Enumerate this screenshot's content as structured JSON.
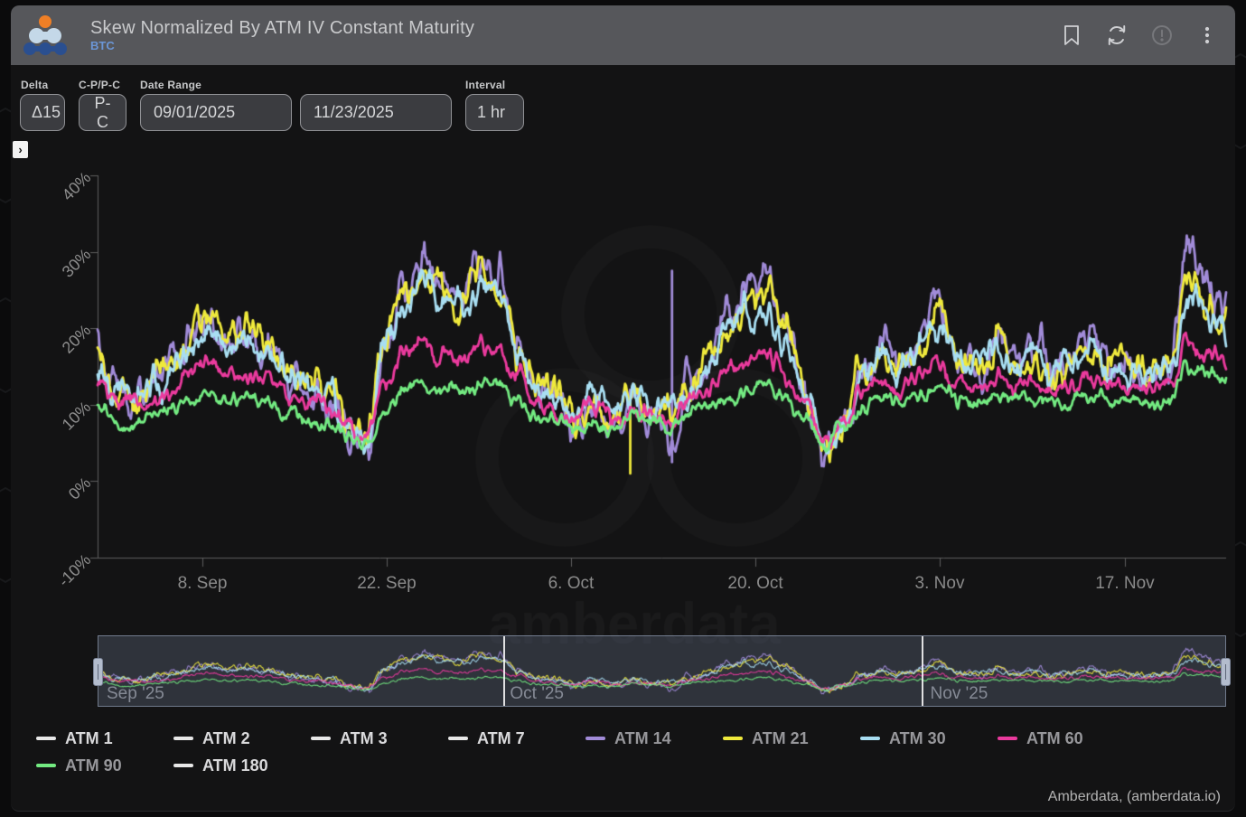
{
  "header": {
    "title": "Skew Normalized By ATM IV Constant Maturity",
    "subtitle": "BTC"
  },
  "controls": {
    "delta_label": "Delta",
    "delta_value": "Δ15",
    "cp_label": "C-P/P-C",
    "cp_value": "P-C",
    "date_range_label": "Date Range",
    "date_from": "09/01/2025",
    "date_to": "11/23/2025",
    "interval_label": "Interval",
    "interval_value": "1 hr",
    "expander": "›"
  },
  "watermark": {
    "text": "amberdata"
  },
  "footer": {
    "credit": "Amberdata, (amberdata.io)"
  },
  "chart_data": {
    "type": "line",
    "title": "Skew Normalized By ATM IV Constant Maturity",
    "x_range": [
      "09/01/2025",
      "11/23/2025"
    ],
    "interval": "1 hr",
    "ylim": [
      -10,
      40
    ],
    "grid": false,
    "legend_position": "bottom",
    "yticks": [
      {
        "label": "40%",
        "value": 40
      },
      {
        "label": "30%",
        "value": 30
      },
      {
        "label": "20%",
        "value": 20
      },
      {
        "label": "10%",
        "value": 10
      },
      {
        "label": "0%",
        "value": 0
      },
      {
        "label": "-10%",
        "value": -10
      }
    ],
    "xticks": [
      {
        "label": "8. Sep",
        "f": 0.0929
      },
      {
        "label": "22. Sep",
        "f": 0.2562
      },
      {
        "label": "6. Oct",
        "f": 0.4195
      },
      {
        "label": "20. Oct",
        "f": 0.5829
      },
      {
        "label": "3. Nov",
        "f": 0.7462
      },
      {
        "label": "17. Nov",
        "f": 0.9103
      }
    ],
    "legend": [
      {
        "name": "ATM 1",
        "color": "#e8e8e8",
        "visible": false
      },
      {
        "name": "ATM 2",
        "color": "#e8e8e8",
        "visible": false
      },
      {
        "name": "ATM 3",
        "color": "#e8e8e8",
        "visible": false
      },
      {
        "name": "ATM 7",
        "color": "#e8e8e8",
        "visible": false
      },
      {
        "name": "ATM 14",
        "color": "#a18bd8",
        "visible": true
      },
      {
        "name": "ATM 21",
        "color": "#efe93c",
        "visible": true
      },
      {
        "name": "ATM 30",
        "color": "#a8def2",
        "visible": true
      },
      {
        "name": "ATM 60",
        "color": "#ea3a9d",
        "visible": true
      },
      {
        "name": "ATM 90",
        "color": "#73ea81",
        "visible": true
      },
      {
        "name": "ATM 180",
        "color": "#e8e8e8",
        "visible": false
      }
    ],
    "series": [
      {
        "name": "ATM 14",
        "color": "#a18bd8",
        "noise": 2.3,
        "spikes": [
          {
            "f": 0.509,
            "lo": 2.5,
            "hi": 27.5
          }
        ],
        "values": [
          17,
          12,
          10.5,
          13.5,
          15.5,
          19,
          20.5,
          18,
          19.5,
          17,
          13,
          11.5,
          11,
          7,
          4.5,
          18,
          25,
          29.5,
          25.5,
          23.5,
          28,
          26,
          18.5,
          12,
          9.5,
          7.5,
          10.5,
          6.5,
          12.5,
          8.5,
          3,
          13.5,
          17,
          21,
          25,
          28.5,
          19,
          11.5,
          3.5,
          8.5,
          15,
          18,
          16,
          18,
          24.5,
          17,
          15,
          20,
          16.5,
          18,
          14.5,
          16.5,
          19,
          15,
          16,
          14,
          15.5,
          29,
          24,
          22.5
        ]
      },
      {
        "name": "ATM 21",
        "color": "#efe93c",
        "noise": 2.1,
        "spikes": [
          {
            "f": 0.472,
            "lo": 1
          }
        ],
        "values": [
          16.5,
          12.5,
          11,
          13.5,
          15.5,
          19.5,
          21,
          18.5,
          19,
          17.5,
          14,
          12.5,
          11.5,
          7.5,
          5,
          18.5,
          24.5,
          28.5,
          25,
          23,
          27.5,
          25.5,
          18,
          12.5,
          10,
          8,
          11,
          7,
          12,
          9,
          8,
          13,
          16.5,
          20,
          23.5,
          26.5,
          18.5,
          12,
          4,
          8,
          14.5,
          17,
          15.5,
          17.5,
          22.5,
          16.5,
          14.5,
          19,
          16,
          17,
          14,
          16,
          18,
          14.5,
          15.5,
          13.5,
          15,
          27.5,
          23,
          21.5
        ]
      },
      {
        "name": "ATM 30",
        "color": "#a8def2",
        "noise": 1.9,
        "spikes": [],
        "values": [
          16,
          12.5,
          11,
          13,
          15,
          18,
          19.5,
          17.5,
          18.5,
          16.5,
          13.5,
          12,
          11.5,
          8,
          5.5,
          17,
          23,
          27.5,
          24,
          22.5,
          26,
          24,
          18,
          13,
          10.5,
          9,
          11,
          8.5,
          12,
          10,
          9.5,
          13,
          16,
          19,
          22,
          24,
          18,
          12,
          4.5,
          8,
          14,
          16.5,
          15,
          17,
          21,
          16,
          14.5,
          18,
          15.5,
          16.5,
          14,
          15.5,
          17.5,
          14.5,
          15,
          13.5,
          14.5,
          25,
          21,
          20
        ]
      },
      {
        "name": "ATM 60",
        "color": "#ea3a9d",
        "noise": 1.15,
        "spikes": [],
        "values": [
          13,
          10.5,
          9.5,
          11,
          12.5,
          14.5,
          15.5,
          14,
          14.5,
          13.5,
          11.5,
          10.5,
          10,
          7.5,
          6,
          13,
          16,
          18.5,
          16.5,
          15.5,
          17.5,
          16.5,
          13.5,
          10.5,
          9,
          8,
          9.5,
          7.5,
          10,
          8.5,
          8,
          10.5,
          12,
          14,
          15.5,
          17,
          13.5,
          10,
          5,
          8,
          11.5,
          13,
          12,
          13,
          15.5,
          12.5,
          11.5,
          14,
          12.5,
          13,
          11.5,
          12.5,
          13.5,
          12,
          12.5,
          11.5,
          12,
          18.5,
          17,
          16.5
        ]
      },
      {
        "name": "ATM 90",
        "color": "#73ea81",
        "noise": 0.95,
        "spikes": [],
        "values": [
          9,
          8,
          7.5,
          8.5,
          9.5,
          10.5,
          11,
          10.5,
          10.5,
          10,
          9,
          8,
          7.5,
          6,
          4.5,
          9.5,
          11.5,
          13,
          12,
          11.5,
          12.5,
          12,
          10.5,
          8.5,
          7.5,
          6.5,
          8,
          6.5,
          8.5,
          7.5,
          7,
          8.5,
          9.5,
          11,
          12,
          13,
          11,
          8.5,
          4.5,
          7,
          9.5,
          10.5,
          10,
          10.5,
          12.5,
          10.5,
          10,
          11.5,
          10.5,
          11,
          10,
          10.5,
          11.5,
          10,
          10.5,
          10,
          10.5,
          15,
          14,
          13.5
        ]
      }
    ],
    "navigator": {
      "separators": [
        0.3593,
        0.7305
      ],
      "labels": [
        {
          "text": "Sep '25",
          "f": 0.004
        },
        {
          "text": "Oct '25",
          "f": 0.362
        },
        {
          "text": "Nov '25",
          "f": 0.735
        }
      ]
    }
  }
}
